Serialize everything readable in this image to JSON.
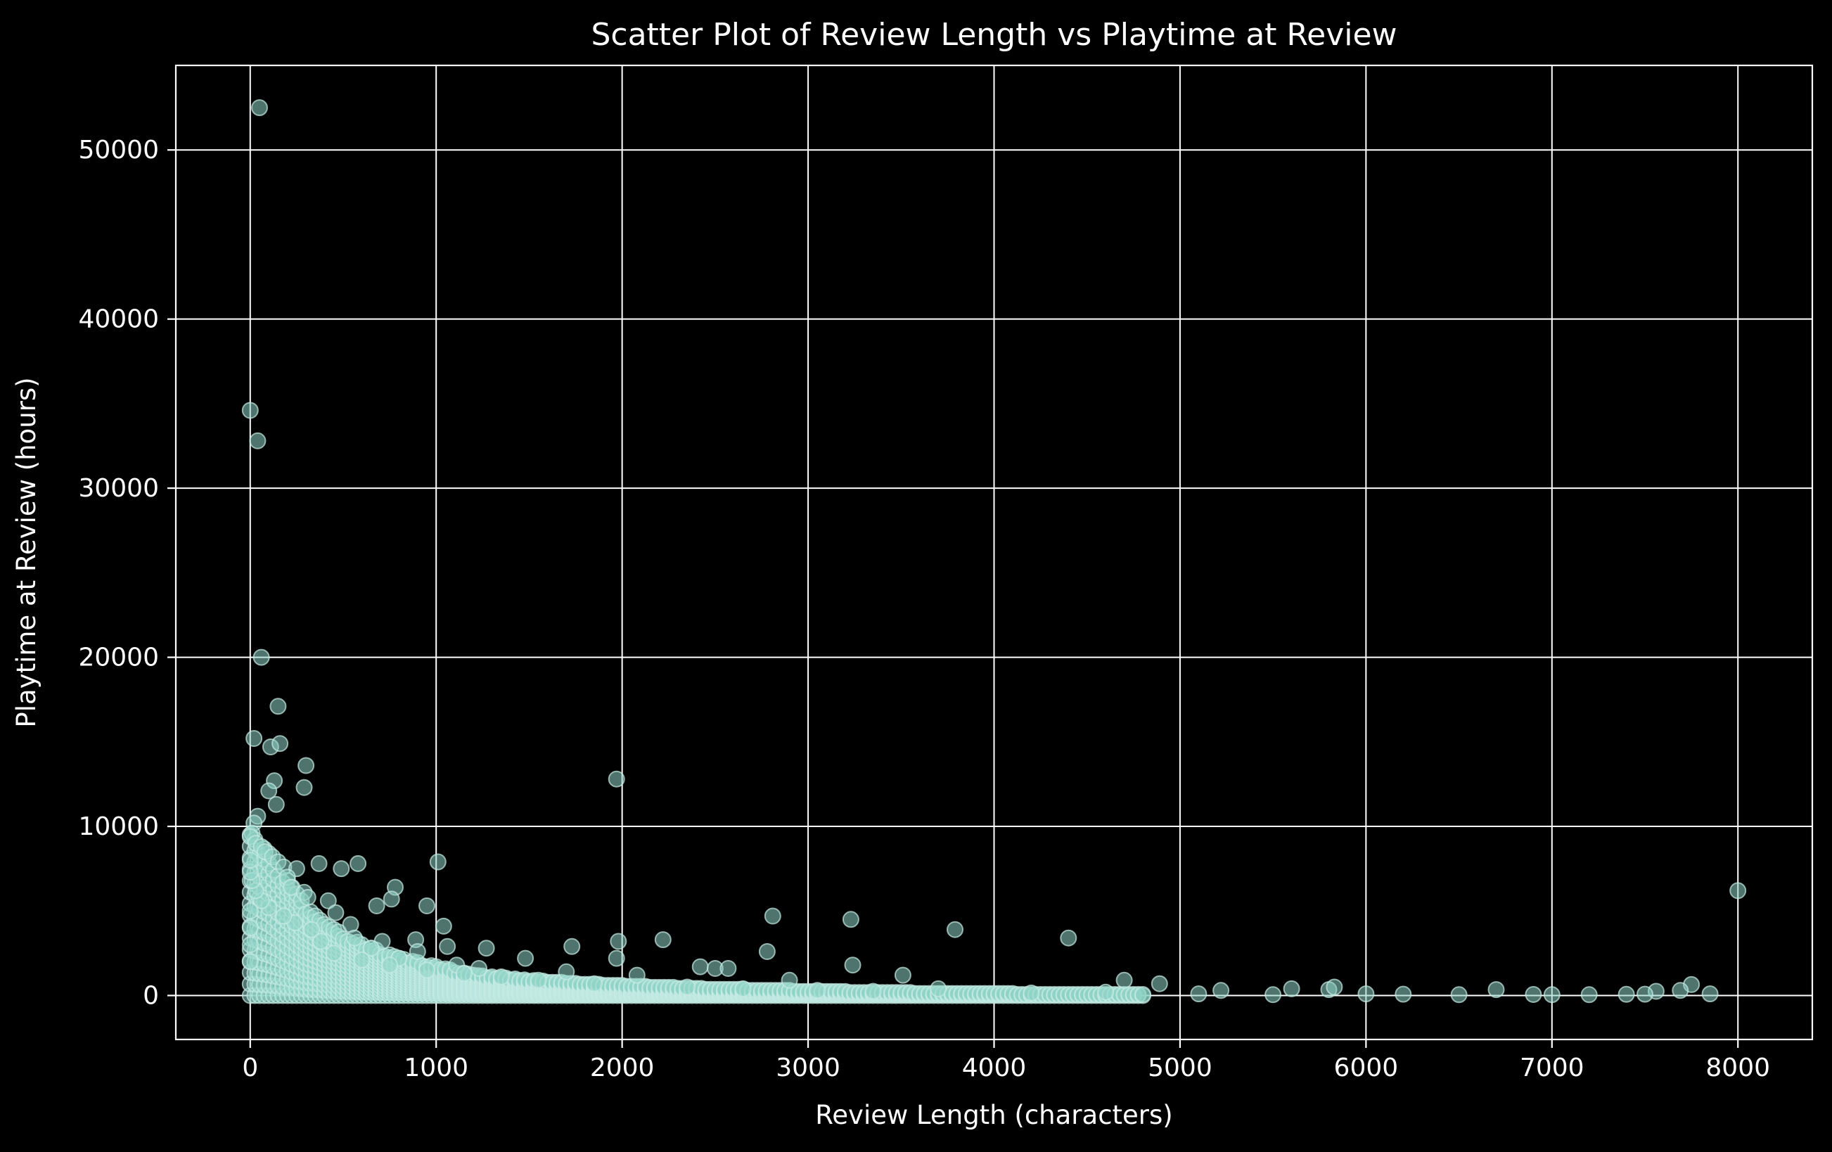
{
  "chart_data": {
    "type": "scatter",
    "title": "Scatter Plot of Review Length vs Playtime at Review",
    "xlabel": "Review Length (characters)",
    "ylabel": "Playtime at Review (hours)",
    "xlim": [
      -400,
      8400
    ],
    "ylim": [
      -2600,
      55000
    ],
    "xticks": [
      0,
      1000,
      2000,
      3000,
      4000,
      5000,
      6000,
      7000,
      8000
    ],
    "yticks": [
      0,
      10000,
      20000,
      30000,
      40000,
      50000
    ],
    "xtick_labels": [
      "0",
      "1000",
      "2000",
      "3000",
      "4000",
      "5000",
      "6000",
      "7000",
      "8000"
    ],
    "ytick_labels": [
      "0",
      "10000",
      "20000",
      "30000",
      "40000",
      "50000"
    ],
    "grid": true,
    "colors": {
      "background": "#000000",
      "axes": "#ffffff",
      "marker_fill": "#8fd3c6",
      "marker_edge": "#c6ebe4"
    },
    "series": [
      {
        "marker_alpha": 0.55,
        "points": [
          [
            50,
            52500
          ],
          [
            0,
            34600
          ],
          [
            40,
            32800
          ],
          [
            60,
            20000
          ],
          [
            20,
            15200
          ],
          [
            150,
            17100
          ],
          [
            110,
            14700
          ],
          [
            160,
            14900
          ],
          [
            130,
            12700
          ],
          [
            300,
            13600
          ],
          [
            290,
            12300
          ],
          [
            1970,
            12800
          ],
          [
            100,
            12100
          ],
          [
            140,
            11300
          ],
          [
            40,
            10600
          ],
          [
            20,
            10200
          ],
          [
            10,
            9600
          ],
          [
            0,
            9400
          ],
          [
            30,
            9000
          ],
          [
            60,
            8800
          ],
          [
            80,
            8500
          ],
          [
            120,
            8200
          ],
          [
            150,
            7900
          ],
          [
            180,
            7600
          ],
          [
            250,
            7500
          ],
          [
            370,
            7800
          ],
          [
            490,
            7500
          ],
          [
            580,
            7800
          ],
          [
            1010,
            7900
          ],
          [
            780,
            6400
          ],
          [
            200,
            7000
          ],
          [
            220,
            6400
          ],
          [
            290,
            6100
          ],
          [
            310,
            5800
          ],
          [
            420,
            5600
          ],
          [
            460,
            4900
          ],
          [
            680,
            5300
          ],
          [
            950,
            5300
          ],
          [
            760,
            5700
          ],
          [
            1040,
            4100
          ],
          [
            540,
            4200
          ],
          [
            560,
            3400
          ],
          [
            710,
            3200
          ],
          [
            890,
            3300
          ],
          [
            1060,
            2900
          ],
          [
            1270,
            2800
          ],
          [
            1480,
            2200
          ],
          [
            1730,
            2900
          ],
          [
            1980,
            3200
          ],
          [
            1970,
            2200
          ],
          [
            2220,
            3300
          ],
          [
            2810,
            4700
          ],
          [
            3230,
            4500
          ],
          [
            3790,
            3900
          ],
          [
            4400,
            3400
          ],
          [
            8000,
            6200
          ],
          [
            2780,
            2600
          ],
          [
            2420,
            1700
          ],
          [
            2500,
            1600
          ],
          [
            2570,
            1600
          ],
          [
            3240,
            1800
          ],
          [
            3510,
            1200
          ],
          [
            4700,
            900
          ],
          [
            4890,
            700
          ],
          [
            2080,
            1200
          ],
          [
            1700,
            1400
          ],
          [
            1230,
            1600
          ],
          [
            1110,
            1800
          ],
          [
            800,
            2200
          ],
          [
            900,
            2600
          ],
          [
            650,
            2800
          ],
          [
            380,
            3200
          ],
          [
            330,
            3900
          ],
          [
            240,
            4300
          ],
          [
            180,
            4700
          ],
          [
            100,
            5200
          ],
          [
            60,
            5600
          ],
          [
            30,
            6200
          ],
          [
            10,
            6800
          ],
          [
            0,
            7300
          ],
          [
            0,
            8000
          ],
          [
            0,
            5000
          ],
          [
            0,
            4000
          ],
          [
            0,
            3000
          ],
          [
            0,
            2000
          ],
          [
            5220,
            300
          ],
          [
            5600,
            400
          ],
          [
            5800,
            350
          ],
          [
            5830,
            500
          ],
          [
            6700,
            350
          ],
          [
            7560,
            250
          ],
          [
            7750,
            650
          ],
          [
            7690,
            300
          ],
          [
            2900,
            900
          ],
          [
            3700,
            400
          ],
          [
            6000,
            100
          ],
          [
            6500,
            50
          ],
          [
            7000,
            50
          ],
          [
            7200,
            50
          ],
          [
            7500,
            80
          ],
          [
            7850,
            100
          ],
          [
            4200,
            150
          ],
          [
            4600,
            200
          ],
          [
            5100,
            100
          ],
          [
            5500,
            50
          ],
          [
            6200,
            80
          ],
          [
            6900,
            60
          ],
          [
            7400,
            70
          ],
          [
            3050,
            300
          ],
          [
            3350,
            250
          ],
          [
            2650,
            400
          ],
          [
            2350,
            500
          ],
          [
            1850,
            700
          ],
          [
            1550,
            900
          ],
          [
            1350,
            1100
          ],
          [
            1150,
            1300
          ],
          [
            950,
            1500
          ],
          [
            750,
            1800
          ],
          [
            600,
            2100
          ],
          [
            450,
            2500
          ]
        ],
        "band": {
          "x": [
            0,
            100,
            200,
            300,
            400,
            600,
            800,
            1000,
            1200,
            1500,
            1800,
            2100,
            2500,
            2900,
            3300,
            3700,
            4100,
            4500,
            4800
          ],
          "y_max": [
            9500,
            8400,
            6800,
            5200,
            4200,
            3000,
            2200,
            1700,
            1200,
            900,
            700,
            550,
            400,
            300,
            220,
            160,
            120,
            90,
            70
          ]
        }
      }
    ]
  }
}
